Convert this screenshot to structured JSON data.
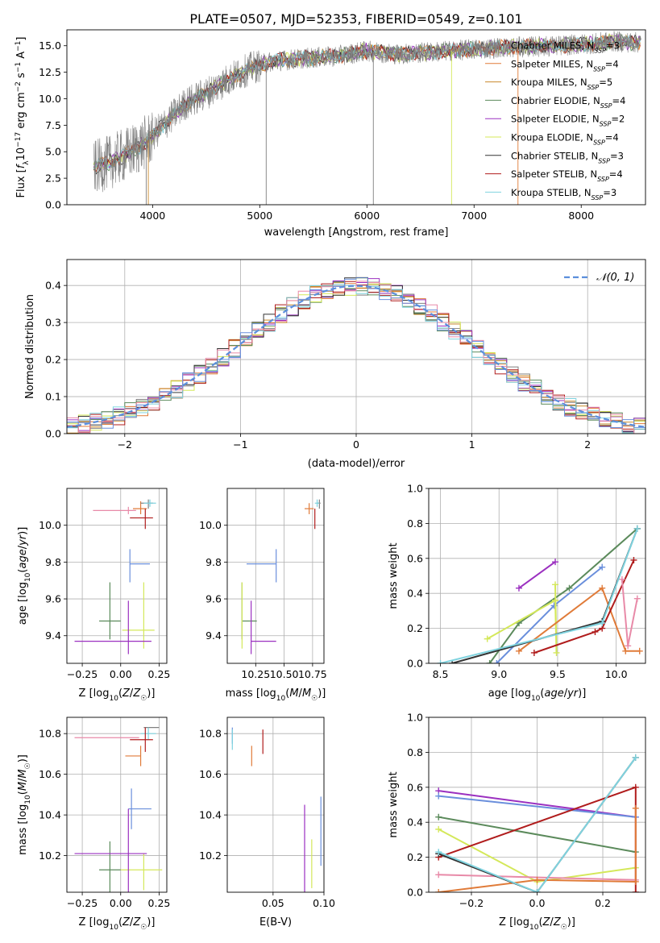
{
  "figure_title": "PLATE=0507, MJD=52353, FIBERID=0549, z=0.101",
  "colors": {
    "chabrier_miles": "#808080",
    "salpeter_miles": "#e07b39",
    "kroupa_miles": "#c9892b",
    "chabrier_elodie": "#5b8a5b",
    "salpeter_elodie": "#9b30c0",
    "kroupa_elodie": "#d4e85a",
    "chabrier_stelib": "#333333",
    "salpeter_stelib": "#b01c1c",
    "kroupa_stelib": "#7fd3df",
    "blue_model": "#6a8fdc",
    "pink_model": "#e88aa8",
    "normal_curve": "#5b8fdc"
  },
  "chart_data": [
    {
      "id": "spectrum",
      "type": "line",
      "xlabel": "wavelength [Angstrom, rest frame]",
      "ylabel": "Flux [f_λ10^-17 erg cm^-2 s^-1 A^-1]",
      "xlim": [
        3200,
        8600
      ],
      "ylim": [
        0,
        16.5
      ],
      "xticks": [
        4000,
        5000,
        6000,
        7000,
        8000
      ],
      "yticks": [
        0.0,
        2.5,
        5.0,
        7.5,
        10.0,
        12.5,
        15.0
      ],
      "legend": "top-right",
      "legend_entries": [
        {
          "label": "Chabrier MILES, N_SSP=3",
          "color": "#808080"
        },
        {
          "label": "Salpeter MILES, N_SSP=4",
          "color": "#e07b39"
        },
        {
          "label": "Kroupa MILES, N_SSP=5",
          "color": "#c9892b"
        },
        {
          "label": "Chabrier ELODIE, N_SSP=4",
          "color": "#5b8a5b"
        },
        {
          "label": "Salpeter ELODIE, N_SSP=2",
          "color": "#9b30c0"
        },
        {
          "label": "Kroupa ELODIE, N_SSP=4",
          "color": "#d4e85a"
        },
        {
          "label": "Chabrier STELIB, N_SSP=3",
          "color": "#333333"
        },
        {
          "label": "Salpeter STELIB, N_SSP=4",
          "color": "#b01c1c"
        },
        {
          "label": "Kroupa STELIB, N_SSP=3",
          "color": "#7fd3df"
        }
      ],
      "continuum": [
        [
          3450,
          3.5
        ],
        [
          3600,
          4.0
        ],
        [
          3800,
          5.0
        ],
        [
          3950,
          6.0
        ],
        [
          4100,
          7.5
        ],
        [
          4300,
          9.5
        ],
        [
          4500,
          10.5
        ],
        [
          4700,
          11.8
        ],
        [
          4900,
          12.8
        ],
        [
          5100,
          13.5
        ],
        [
          5400,
          13.8
        ],
        [
          5700,
          14.0
        ],
        [
          6000,
          14.5
        ],
        [
          6300,
          14.2
        ],
        [
          6600,
          14.4
        ],
        [
          6900,
          14.6
        ],
        [
          7200,
          14.8
        ],
        [
          7500,
          14.9
        ],
        [
          7800,
          15.0
        ],
        [
          8100,
          15.2
        ],
        [
          8300,
          15.4
        ],
        [
          8500,
          15.3
        ]
      ]
    },
    {
      "id": "residuals",
      "type": "step",
      "xlabel": "(data-model)/error",
      "ylabel": "Normed distribution",
      "xlim": [
        -2.5,
        2.5
      ],
      "ylim": [
        0,
        0.47
      ],
      "xticks": [
        -2,
        -1,
        0,
        1,
        2
      ],
      "yticks": [
        0.0,
        0.1,
        0.2,
        0.3,
        0.4
      ],
      "legend": "top-right",
      "legend_entries": [
        {
          "label": "N(0,1)",
          "style": "dashed",
          "color": "#5b8fdc"
        }
      ]
    },
    {
      "id": "age_vs_Z",
      "type": "errorbar",
      "xlabel": "Z [log10(Z/Z☉)]",
      "ylabel": "age  [log10(age/yr)]",
      "xlim": [
        -0.35,
        0.3
      ],
      "ylim": [
        9.25,
        10.2
      ],
      "xticks": [
        -0.25,
        0.0,
        0.25
      ],
      "yticks": [
        9.4,
        9.6,
        9.8,
        10.0
      ],
      "points": [
        {
          "color": "#e88aa8",
          "x": 0.05,
          "xerr": [
            0.23,
            0.05
          ],
          "y": 10.08,
          "yerr": [
            0.02,
            0.02
          ]
        },
        {
          "color": "#e07b39",
          "x": 0.13,
          "xerr": [
            0.05,
            0.04
          ],
          "y": 10.09,
          "yerr": [
            0.03,
            0.04
          ]
        },
        {
          "color": "#808080",
          "x": 0.18,
          "xerr": [
            0.05,
            0.03
          ],
          "y": 10.12,
          "yerr": [
            0.03,
            0.02
          ]
        },
        {
          "color": "#7fd3df",
          "x": 0.19,
          "xerr": [
            0.04,
            0.04
          ],
          "y": 10.12,
          "yerr": [
            0.02,
            0.02
          ]
        },
        {
          "color": "#b01c1c",
          "x": 0.16,
          "xerr": [
            0.1,
            0.05
          ],
          "y": 10.04,
          "yerr": [
            0.06,
            0.05
          ]
        },
        {
          "color": "#6a8fdc",
          "x": 0.06,
          "xerr": [
            0.0,
            0.13
          ],
          "y": 9.79,
          "yerr": [
            0.1,
            0.08
          ]
        },
        {
          "color": "#5b8a5b",
          "x": -0.07,
          "xerr": [
            0.07,
            0.07
          ],
          "y": 9.48,
          "yerr": [
            0.1,
            0.21
          ]
        },
        {
          "color": "#d4e85a",
          "x": 0.15,
          "xerr": [
            0.14,
            0.07
          ],
          "y": 9.43,
          "yerr": [
            0.1,
            0.26
          ]
        },
        {
          "color": "#9b30c0",
          "x": 0.05,
          "xerr": [
            0.35,
            0.15
          ],
          "y": 9.37,
          "yerr": [
            0.07,
            0.22
          ]
        }
      ]
    },
    {
      "id": "age_vs_mass",
      "type": "errorbar",
      "xlabel": "mass [log10(M/M☉)]",
      "ylabel": "",
      "xlim": [
        10.0,
        10.85
      ],
      "ylim": [
        9.25,
        10.2
      ],
      "xticks": [
        10.25,
        10.5,
        10.75
      ],
      "yticks": [
        9.4,
        9.6,
        9.8,
        10.0
      ],
      "points": [
        {
          "color": "#e07b39",
          "x": 10.72,
          "xerr": [
            0.04,
            0.04
          ],
          "y": 10.09,
          "yerr": [
            0.03,
            0.03
          ]
        },
        {
          "color": "#808080",
          "x": 10.81,
          "xerr": [
            0.02,
            0.01
          ],
          "y": 10.12,
          "yerr": [
            0.03,
            0.02
          ]
        },
        {
          "color": "#7fd3df",
          "x": 10.79,
          "xerr": [
            0.02,
            0.02
          ],
          "y": 10.12,
          "yerr": [
            0.02,
            0.02
          ]
        },
        {
          "color": "#b01c1c",
          "x": 10.77,
          "xerr": [
            0.0,
            0.0
          ],
          "y": 10.04,
          "yerr": [
            0.06,
            0.05
          ]
        },
        {
          "color": "#6a8fdc",
          "x": 10.43,
          "xerr": [
            0.26,
            0.0
          ],
          "y": 9.79,
          "yerr": [
            0.1,
            0.08
          ]
        },
        {
          "color": "#5b8a5b",
          "x": 10.13,
          "xerr": [
            0.0,
            0.13
          ],
          "y": 9.48,
          "yerr": [
            0.1,
            0.21
          ]
        },
        {
          "color": "#d4e85a",
          "x": 10.13,
          "xerr": [
            0.0,
            0.0
          ],
          "y": 9.43,
          "yerr": [
            0.1,
            0.26
          ]
        },
        {
          "color": "#9b30c0",
          "x": 10.21,
          "xerr": [
            0.0,
            0.22
          ],
          "y": 9.37,
          "yerr": [
            0.07,
            0.22
          ]
        }
      ]
    },
    {
      "id": "weight_vs_age",
      "type": "line",
      "xlabel": "age  [log10(age/yr)]",
      "ylabel": "mass weight",
      "xlim": [
        8.4,
        10.25
      ],
      "ylim": [
        0,
        1.0
      ],
      "xticks": [
        8.5,
        9.0,
        9.5,
        10.0
      ],
      "yticks": [
        0.0,
        0.2,
        0.4,
        0.6,
        0.8,
        1.0
      ],
      "series": [
        {
          "color": "#9b30c0",
          "points": [
            [
              9.17,
              0.43
            ],
            [
              9.48,
              0.58
            ]
          ]
        },
        {
          "color": "#6a8fdc",
          "points": [
            [
              8.98,
              0.0
            ],
            [
              9.47,
              0.33
            ],
            [
              9.88,
              0.55
            ]
          ]
        },
        {
          "color": "#5b8a5b",
          "points": [
            [
              8.92,
              0.0
            ],
            [
              9.17,
              0.23
            ],
            [
              9.6,
              0.43
            ],
            [
              10.18,
              0.77
            ]
          ]
        },
        {
          "color": "#d4e85a",
          "points": [
            [
              8.9,
              0.14
            ],
            [
              9.48,
              0.36
            ],
            [
              9.49,
              0.06
            ],
            [
              9.48,
              0.45
            ]
          ]
        },
        {
          "color": "#e07b39",
          "points": [
            [
              9.17,
              0.07
            ],
            [
              9.88,
              0.43
            ],
            [
              10.08,
              0.07
            ],
            [
              10.2,
              0.07
            ]
          ]
        },
        {
          "color": "#b01c1c",
          "points": [
            [
              9.3,
              0.06
            ],
            [
              9.82,
              0.18
            ],
            [
              9.88,
              0.2
            ],
            [
              10.15,
              0.59
            ]
          ]
        },
        {
          "color": "#333333",
          "points": [
            [
              8.6,
              0.0
            ],
            [
              9.88,
              0.24
            ],
            [
              10.18,
              0.77
            ]
          ]
        },
        {
          "color": "#e88aa8",
          "points": [
            [
              10.05,
              0.48
            ],
            [
              10.1,
              0.1
            ],
            [
              10.18,
              0.37
            ]
          ]
        },
        {
          "color": "#7fd3df",
          "points": [
            [
              8.5,
              0.0
            ],
            [
              9.88,
              0.23
            ],
            [
              10.18,
              0.77
            ]
          ]
        }
      ]
    },
    {
      "id": "mass_vs_Z",
      "type": "errorbar",
      "xlabel": "Z [log10(Z/Z☉)]",
      "ylabel": "mass [log10(M/M☉)]",
      "xlim": [
        -0.35,
        0.3
      ],
      "ylim": [
        10.02,
        10.88
      ],
      "xticks": [
        -0.25,
        0.0,
        0.25
      ],
      "yticks": [
        10.2,
        10.4,
        10.6,
        10.8
      ],
      "points": [
        {
          "color": "#e88aa8",
          "x": 0.0,
          "xerr": [
            0.3,
            0.12
          ],
          "y": 10.78,
          "yerr": [
            0.0,
            0.0
          ]
        },
        {
          "color": "#808080",
          "x": 0.2,
          "xerr": [
            0.05,
            0.05
          ],
          "y": 10.83,
          "yerr": [
            0.0,
            0.0
          ]
        },
        {
          "color": "#7fd3df",
          "x": 0.18,
          "xerr": [
            0.05,
            0.05
          ],
          "y": 10.8,
          "yerr": [
            0.03,
            0.03
          ]
        },
        {
          "color": "#b01c1c",
          "x": 0.16,
          "xerr": [
            0.1,
            0.05
          ],
          "y": 10.77,
          "yerr": [
            0.06,
            0.06
          ]
        },
        {
          "color": "#e07b39",
          "x": 0.13,
          "xerr": [
            0.1,
            0.0
          ],
          "y": 10.69,
          "yerr": [
            0.05,
            0.05
          ]
        },
        {
          "color": "#6a8fdc",
          "x": 0.07,
          "xerr": [
            0.02,
            0.13
          ],
          "y": 10.43,
          "yerr": [
            0.1,
            0.1
          ]
        },
        {
          "color": "#5b8a5b",
          "x": -0.07,
          "xerr": [
            0.07,
            0.07
          ],
          "y": 10.13,
          "yerr": [
            0.14,
            0.14
          ]
        },
        {
          "color": "#d4e85a",
          "x": 0.15,
          "xerr": [
            0.15,
            0.12
          ],
          "y": 10.13,
          "yerr": [
            0.1,
            0.08
          ]
        },
        {
          "color": "#9b30c0",
          "x": 0.05,
          "xerr": [
            0.35,
            0.12
          ],
          "y": 10.21,
          "yerr": [
            0.2,
            0.22
          ]
        }
      ]
    },
    {
      "id": "mass_vs_ebv",
      "type": "errorbar",
      "xlabel": "E(B-V)",
      "ylabel": "",
      "xlim": [
        0.005,
        0.1
      ],
      "ylim": [
        10.02,
        10.88
      ],
      "xticks": [
        0.05,
        0.1
      ],
      "yticks": [
        10.2,
        10.4,
        10.6,
        10.8
      ],
      "points": [
        {
          "color": "#6a8fdc",
          "x": 0.01,
          "y": 10.79,
          "yerr": [
            0.04,
            0.04
          ]
        },
        {
          "color": "#7fd3df",
          "x": 0.01,
          "y": 10.78,
          "yerr": [
            0.06,
            0.04
          ]
        },
        {
          "color": "#e07b39",
          "x": 0.029,
          "y": 10.69,
          "yerr": [
            0.05,
            0.05
          ]
        },
        {
          "color": "#b01c1c",
          "x": 0.04,
          "y": 10.76,
          "yerr": [
            0.06,
            0.06
          ]
        },
        {
          "color": "#9b30c0",
          "x": 0.081,
          "y": 10.21,
          "yerr": [
            0.2,
            0.24
          ]
        },
        {
          "color": "#d4e85a",
          "x": 0.088,
          "y": 10.16,
          "yerr": [
            0.12,
            0.12
          ]
        },
        {
          "color": "#6a8fdc",
          "x": 0.097,
          "y": 10.32,
          "yerr": [
            0.17,
            0.17
          ]
        }
      ]
    },
    {
      "id": "weight_vs_Z",
      "type": "line",
      "xlabel": "Z [log10(Z/Z☉)]",
      "ylabel": "mass weight",
      "xlim": [
        -0.33,
        0.33
      ],
      "ylim": [
        0,
        1.0
      ],
      "xticks": [
        -0.2,
        0.0,
        0.2
      ],
      "yticks": [
        0.0,
        0.2,
        0.4,
        0.6,
        0.8,
        1.0
      ],
      "series": [
        {
          "color": "#9b30c0",
          "points": [
            [
              -0.3,
              0.58
            ],
            [
              0.3,
              0.43
            ]
          ]
        },
        {
          "color": "#6a8fdc",
          "points": [
            [
              -0.3,
              0.55
            ],
            [
              0.3,
              0.43
            ]
          ]
        },
        {
          "color": "#5b8a5b",
          "points": [
            [
              -0.3,
              0.43
            ],
            [
              0.3,
              0.23
            ]
          ]
        },
        {
          "color": "#d4e85a",
          "points": [
            [
              -0.3,
              0.36
            ],
            [
              0.0,
              0.06
            ],
            [
              0.3,
              0.14
            ]
          ]
        },
        {
          "color": "#b01c1c",
          "points": [
            [
              -0.3,
              0.2
            ],
            [
              0.3,
              0.6
            ],
            [
              0.3,
              0.0
            ]
          ]
        },
        {
          "color": "#e88aa8",
          "points": [
            [
              -0.3,
              0.1
            ],
            [
              0.3,
              0.07
            ]
          ]
        },
        {
          "color": "#e07b39",
          "points": [
            [
              -0.3,
              0.0
            ],
            [
              0.0,
              0.07
            ],
            [
              0.3,
              0.06
            ],
            [
              0.3,
              0.48
            ]
          ]
        },
        {
          "color": "#333333",
          "points": [
            [
              -0.3,
              0.22
            ],
            [
              0.0,
              0.0
            ],
            [
              0.3,
              0.77
            ]
          ]
        },
        {
          "color": "#7fd3df",
          "points": [
            [
              -0.3,
              0.23
            ],
            [
              0.0,
              0.0
            ],
            [
              0.3,
              0.77
            ]
          ]
        }
      ]
    }
  ]
}
